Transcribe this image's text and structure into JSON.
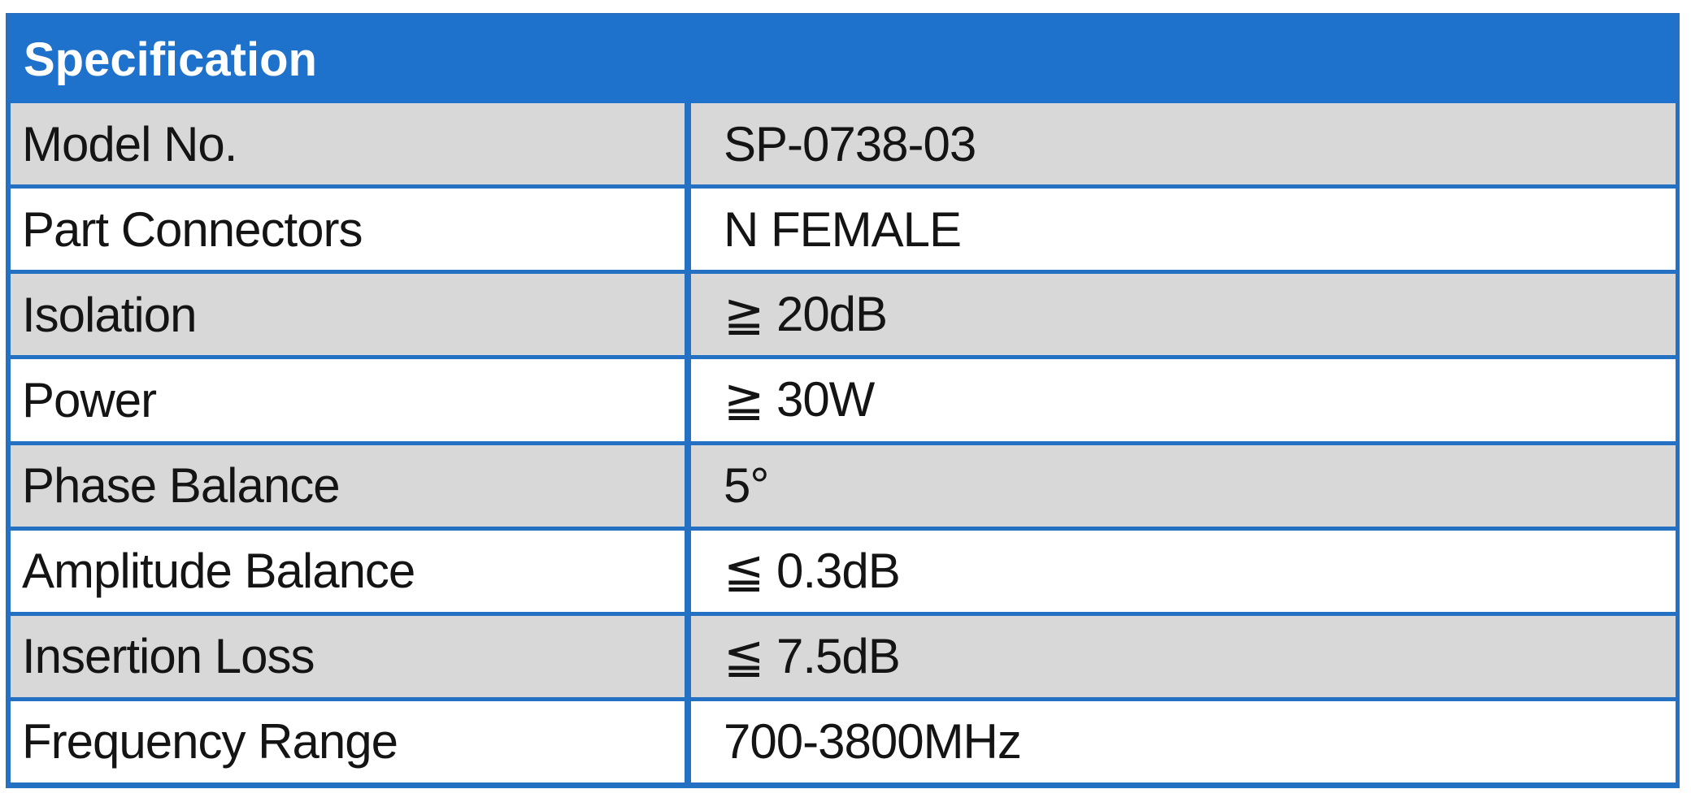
{
  "table": {
    "title": "Specification",
    "rows": [
      {
        "label": "Model No.",
        "value": "SP-0738-03"
      },
      {
        "label": "Part Connectors",
        "value": "N FEMALE"
      },
      {
        "label": "Isolation",
        "value": "≧ 20dB"
      },
      {
        "label": "Power",
        "value": "≧ 30W"
      },
      {
        "label": "Phase Balance",
        "value": "5°"
      },
      {
        "label": "Amplitude Balance",
        "value": "≦ 0.3dB"
      },
      {
        "label": "Insertion Loss",
        "value": "≦ 7.5dB"
      },
      {
        "label": "Frequency Range",
        "value": "700-3800MHz"
      }
    ],
    "colors": {
      "header_bg": "#1E72CC",
      "header_text": "#FFFFFF",
      "grid_blue": "#2470C3",
      "row_gray": "#D8D8D8",
      "row_white": "#FFFFFF",
      "body_text": "#141414"
    }
  }
}
